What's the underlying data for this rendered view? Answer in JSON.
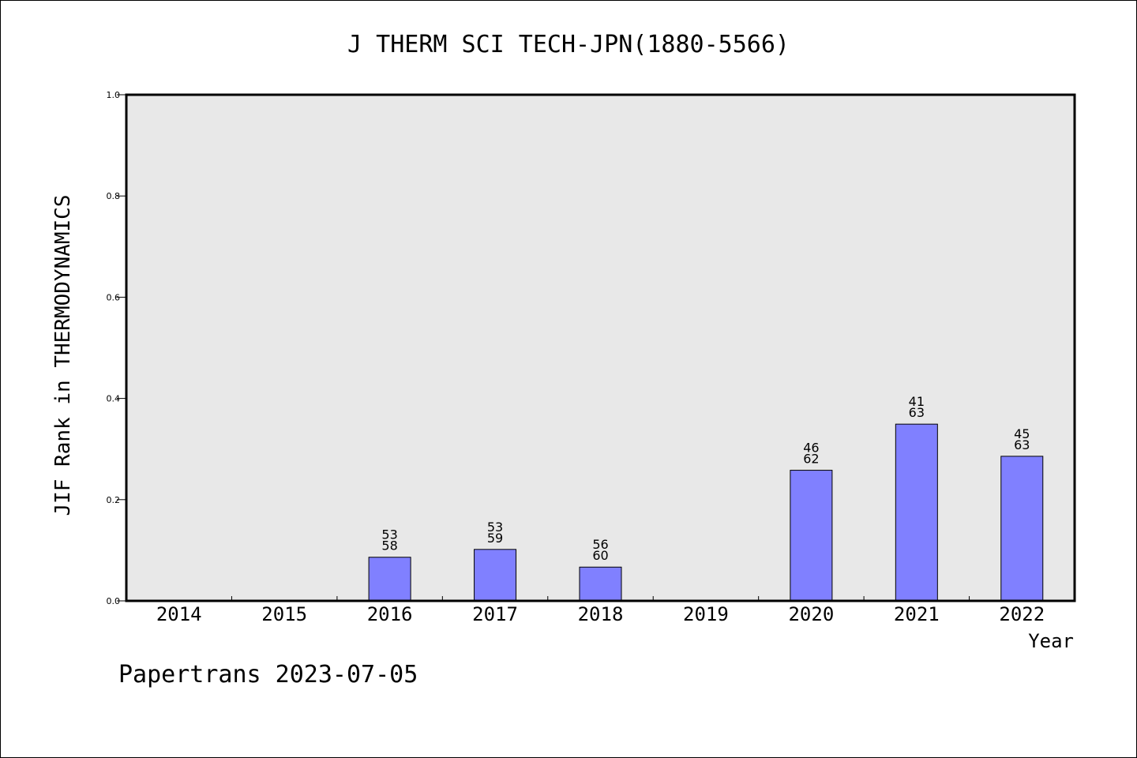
{
  "chart_data": {
    "type": "bar",
    "title": "J THERM SCI TECH-JPN(1880-5566)",
    "xlabel": "Year",
    "ylabel": "JIF Rank in THERMODYNAMICS",
    "ylim": [
      0,
      1.0
    ],
    "yticks": [
      "0.0",
      "0.2",
      "0.4",
      "0.6",
      "0.8",
      "1.0"
    ],
    "categories": [
      "2014",
      "2015",
      "2016",
      "2017",
      "2018",
      "2019",
      "2020",
      "2021",
      "2022"
    ],
    "values": [
      null,
      null,
      0.0862,
      0.1017,
      0.0667,
      null,
      0.2581,
      0.3492,
      0.2857
    ],
    "rank_labels": [
      null,
      null,
      [
        "53",
        "58"
      ],
      [
        "53",
        "59"
      ],
      [
        "56",
        "60"
      ],
      null,
      [
        "46",
        "62"
      ],
      [
        "41",
        "63"
      ],
      [
        "45",
        "63"
      ]
    ],
    "bar_color": "#8080ff",
    "plot_background": "#e8e8e8",
    "grid": false,
    "legend": "none"
  },
  "footer": {
    "text": "Papertrans 2023-07-05"
  }
}
